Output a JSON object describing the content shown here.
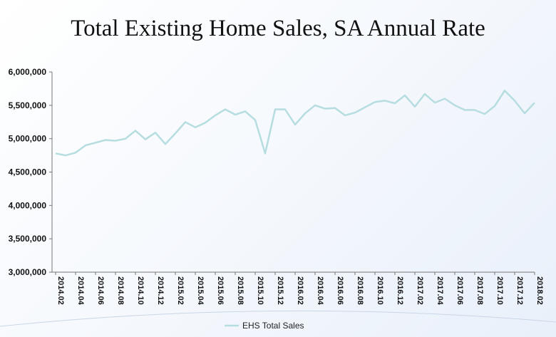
{
  "chart_data": {
    "type": "line",
    "title": "Total Existing Home Sales, SA Annual Rate",
    "xlabel": "",
    "ylabel": "",
    "ylim": [
      3000000,
      6000000
    ],
    "yticks": [
      "6,000,000",
      "5,500,000",
      "5,000,000",
      "4,500,000",
      "4,000,000",
      "3,500,000",
      "3,000,000"
    ],
    "ytick_values": [
      6000000,
      5500000,
      5000000,
      4500000,
      4000000,
      3500000,
      3000000
    ],
    "x": [
      "2014.02",
      "2014.03",
      "2014.04",
      "2014.05",
      "2014.06",
      "2014.07",
      "2014.08",
      "2014.09",
      "2014.10",
      "2014.11",
      "2014.12",
      "2015.01",
      "2015.02",
      "2015.03",
      "2015.04",
      "2015.05",
      "2015.06",
      "2015.07",
      "2015.08",
      "2015.09",
      "2015.10",
      "2015.11",
      "2015.12",
      "2016.01",
      "2016.02",
      "2016.03",
      "2016.04",
      "2016.05",
      "2016.06",
      "2016.07",
      "2016.08",
      "2016.09",
      "2016.10",
      "2016.11",
      "2016.12",
      "2017.01",
      "2017.02",
      "2017.03",
      "2017.04",
      "2017.05",
      "2017.06",
      "2017.07",
      "2017.08",
      "2017.09",
      "2017.10",
      "2017.11",
      "2017.12",
      "2018.01",
      "2018.02"
    ],
    "xtick_labels": [
      "2014.02",
      "2014.04",
      "2014.06",
      "2014.08",
      "2014.10",
      "2014.12",
      "2015.02",
      "2015.04",
      "2015.06",
      "2015.08",
      "2015.10",
      "2015.12",
      "2016.02",
      "2016.04",
      "2016.06",
      "2016.08",
      "2016.10",
      "2016.12",
      "2017.02",
      "2017.04",
      "2017.06",
      "2017.08",
      "2017.10",
      "2017.12",
      "2018.02"
    ],
    "series": [
      {
        "name": "EHS Total Sales",
        "color": "#b6dde0",
        "values": [
          4780000,
          4750000,
          4790000,
          4900000,
          4940000,
          4980000,
          4970000,
          5000000,
          5120000,
          4990000,
          5090000,
          4920000,
          5080000,
          5250000,
          5170000,
          5240000,
          5350000,
          5440000,
          5360000,
          5410000,
          5280000,
          4780000,
          5440000,
          5440000,
          5210000,
          5380000,
          5500000,
          5450000,
          5460000,
          5350000,
          5390000,
          5470000,
          5550000,
          5570000,
          5530000,
          5650000,
          5480000,
          5670000,
          5540000,
          5600000,
          5500000,
          5430000,
          5430000,
          5370000,
          5490000,
          5720000,
          5570000,
          5380000,
          5540000
        ]
      }
    ],
    "legend": "bottom-center",
    "grid": false
  }
}
